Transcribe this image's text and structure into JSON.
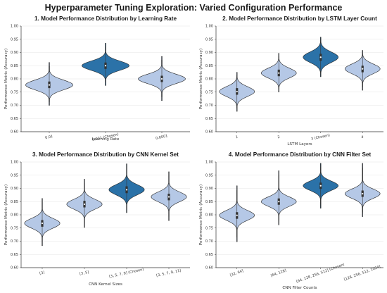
{
  "figure": {
    "title": "Hyperparameter Tuning Exploration: Varied Configuration Performance"
  },
  "colors": {
    "chosen_fill": "#2b72a8",
    "default_fill": "#b5c8e6",
    "grid": "#e6e6e6",
    "axis": "#333333"
  },
  "chart_data": [
    {
      "type": "violin",
      "title": "1. Model Performance Distribution by Learning Rate",
      "xlabel": "Learning Rate",
      "ylabel": "Performance Metric (Accuracy)",
      "ylim": [
        0.6,
        1.0
      ],
      "yticks": [
        "0.60",
        "0.65",
        "0.70",
        "0.75",
        "0.80",
        "0.85",
        "0.90",
        "0.95",
        "1.00"
      ],
      "grid": true,
      "categories": [
        "0.01",
        "0.001 (Chosen)",
        "0.0001"
      ],
      "chosen_index": 1,
      "series": [
        {
          "category": "0.01",
          "min": 0.7,
          "q1": 0.765,
          "median": 0.777,
          "q3": 0.79,
          "max": 0.862
        },
        {
          "category": "0.001 (Chosen)",
          "min": 0.775,
          "q1": 0.838,
          "median": 0.85,
          "q3": 0.862,
          "max": 0.935
        },
        {
          "category": "0.0001",
          "min": 0.718,
          "q1": 0.788,
          "median": 0.8,
          "q3": 0.812,
          "max": 0.885
        }
      ]
    },
    {
      "type": "violin",
      "title": "2. Model Performance Distribution by LSTM Layer Count",
      "xlabel": "LSTM Layers",
      "ylabel": "Performance Metric (Accuracy)",
      "ylim": [
        0.6,
        1.0
      ],
      "yticks": [
        "0.60",
        "0.65",
        "0.70",
        "0.75",
        "0.80",
        "0.85",
        "0.90",
        "0.95",
        "1.00"
      ],
      "grid": true,
      "categories": [
        "1",
        "2",
        "3 (Chosen)",
        "4"
      ],
      "chosen_index": 2,
      "series": [
        {
          "category": "1",
          "min": 0.677,
          "q1": 0.74,
          "median": 0.752,
          "q3": 0.765,
          "max": 0.825
        },
        {
          "category": "2",
          "min": 0.75,
          "q1": 0.81,
          "median": 0.822,
          "q3": 0.835,
          "max": 0.897
        },
        {
          "category": "3 (Chosen)",
          "min": 0.808,
          "q1": 0.868,
          "median": 0.882,
          "q3": 0.895,
          "max": 0.958
        },
        {
          "category": "4",
          "min": 0.757,
          "q1": 0.825,
          "median": 0.838,
          "q3": 0.85,
          "max": 0.908
        }
      ]
    },
    {
      "type": "violin",
      "title": "3. Model Performance Distribution by CNN Kernel Set",
      "xlabel": "CNN Kernel Sizes",
      "ylabel": "Performance Metric (Accuracy)",
      "ylim": [
        0.6,
        1.0
      ],
      "yticks": [
        "0.60",
        "0.65",
        "0.70",
        "0.75",
        "0.80",
        "0.85",
        "0.90",
        "0.95",
        "1.00"
      ],
      "grid": true,
      "categories": [
        "[3]",
        "[3, 5]",
        "[3, 5, 7, 9] (Chosen)",
        "[3, 5, 7, 9, 11]"
      ],
      "chosen_index": 2,
      "series": [
        {
          "category": "[3]",
          "min": 0.683,
          "q1": 0.755,
          "median": 0.768,
          "q3": 0.78,
          "max": 0.862
        },
        {
          "category": "[3, 5]",
          "min": 0.752,
          "q1": 0.828,
          "median": 0.84,
          "q3": 0.853,
          "max": 0.935
        },
        {
          "category": "[3, 5, 7, 9] (Chosen)",
          "min": 0.808,
          "q1": 0.882,
          "median": 0.895,
          "q3": 0.908,
          "max": 0.993
        },
        {
          "category": "[3, 5, 7, 9, 11]",
          "min": 0.778,
          "q1": 0.855,
          "median": 0.868,
          "q3": 0.88,
          "max": 0.963
        }
      ]
    },
    {
      "type": "violin",
      "title": "4. Model Performance Distribution by CNN Filter Set",
      "xlabel": "CNN Filter Counts",
      "ylabel": "Performance Metric (Accuracy)",
      "ylim": [
        0.6,
        1.0
      ],
      "yticks": [
        "0.60",
        "0.65",
        "0.70",
        "0.75",
        "0.80",
        "0.85",
        "0.90",
        "0.95",
        "1.00"
      ],
      "grid": true,
      "categories": [
        "[32, 64]",
        "[64, 128]",
        "[64, 128, 256, 512] (Chosen)",
        "[128, 256, 512, 1024]"
      ],
      "chosen_index": 2,
      "series": [
        {
          "category": "[32, 64]",
          "min": 0.698,
          "q1": 0.785,
          "median": 0.798,
          "q3": 0.81,
          "max": 0.91
        },
        {
          "category": "[64, 128]",
          "min": 0.762,
          "q1": 0.838,
          "median": 0.85,
          "q3": 0.862,
          "max": 0.967
        },
        {
          "category": "[64, 128, 256, 512] (Chosen)",
          "min": 0.825,
          "q1": 0.898,
          "median": 0.91,
          "q3": 0.922,
          "max": 0.995
        },
        {
          "category": "[128, 256, 512, 1024]",
          "min": 0.793,
          "q1": 0.868,
          "median": 0.88,
          "q3": 0.892,
          "max": 0.995
        }
      ]
    }
  ]
}
